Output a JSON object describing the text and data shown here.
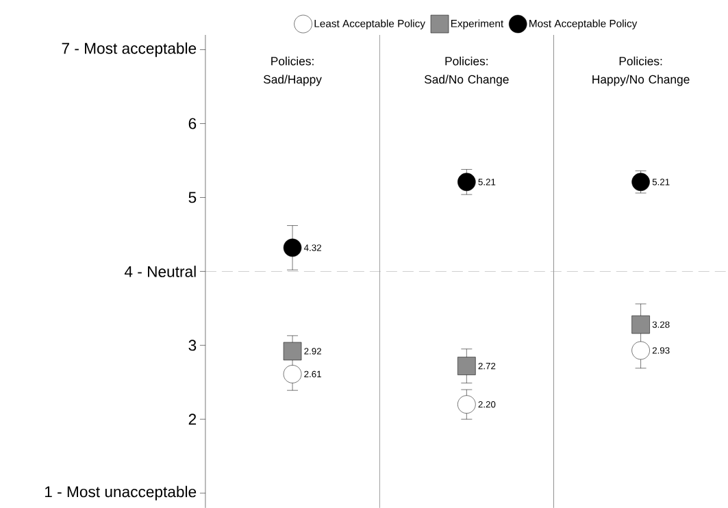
{
  "chart_data": {
    "type": "scatter",
    "categories": [
      "Policies: Sad/Happy",
      "Policies: Sad/No Change",
      "Policies: Happy/No Change"
    ],
    "series": [
      {
        "name": "Least Acceptable Policy",
        "color": "#ffffff",
        "marker": "circle",
        "values": [
          2.61,
          2.2,
          2.93
        ],
        "errors": [
          [
            2.39,
            2.81
          ],
          0.2,
          0.24
        ],
        "value_labels": [
          "2.61",
          "2.20",
          "2.93"
        ]
      },
      {
        "name": "Experiment",
        "color": "#8c8c8c",
        "marker": "square",
        "values": [
          2.92,
          2.72,
          3.28
        ],
        "errors": [
          [
            2.82,
            3.13
          ],
          0.23,
          [
            3.18,
            3.56
          ]
        ],
        "value_labels": [
          "2.92",
          "2.72",
          "3.28"
        ]
      },
      {
        "name": "Most Acceptable Policy",
        "color": "#000000",
        "marker": "circle",
        "values": [
          4.32,
          5.21,
          5.21
        ],
        "errors": [
          0.3,
          0.17,
          0.15
        ],
        "value_labels": [
          "4.32",
          "5.21",
          "5.21"
        ]
      }
    ],
    "ylim": [
      0.8,
      7.2
    ],
    "yticks": [
      {
        "value": 1,
        "label": "1 - Most unacceptable"
      },
      2,
      3,
      {
        "value": 4,
        "label": "4 - Neutral"
      },
      5,
      6,
      {
        "value": 7,
        "label": "7 - Most acceptable"
      }
    ],
    "ref_lines": [
      {
        "axis": "y",
        "value": 4,
        "color": "#999999",
        "line_style": "dashed"
      }
    ],
    "legend": "top"
  }
}
